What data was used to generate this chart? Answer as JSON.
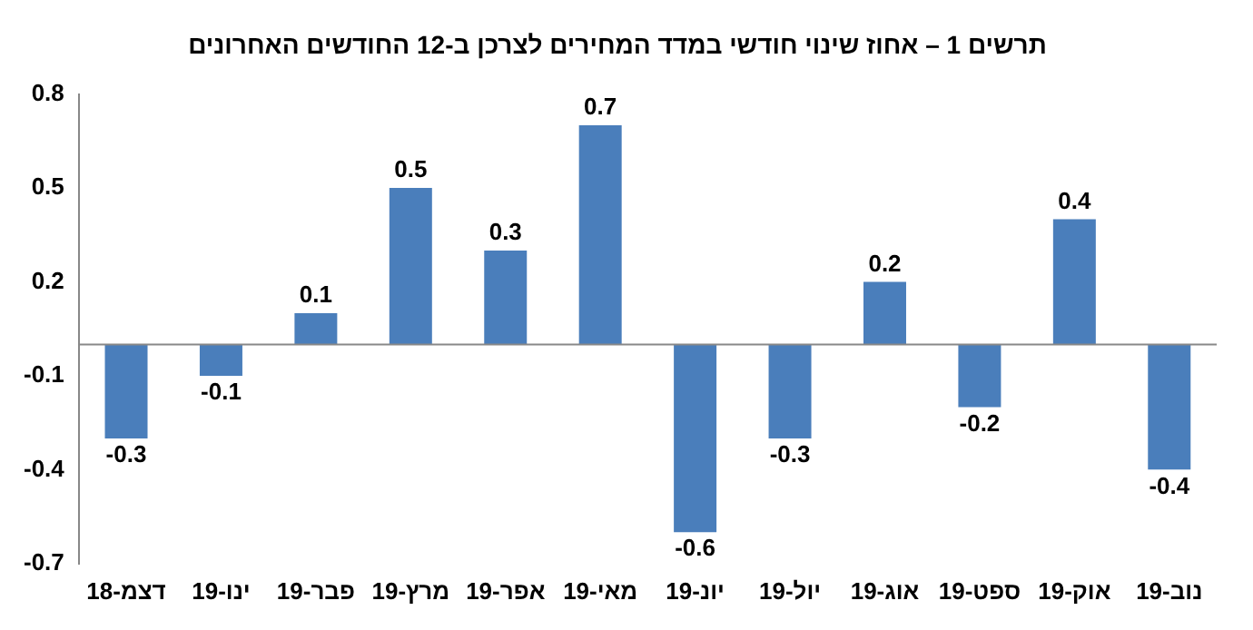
{
  "chart_data": {
    "type": "bar",
    "title": "תרשים 1 – אחוז שינוי חודשי במדד המחירים לצרכן ב-12 החודשים האחרונים",
    "categories": [
      "דצמ-18",
      "ינו-19",
      "פבר-19",
      "מרץ-19",
      "אפר-19",
      "מאי-19",
      "יונ-19",
      "יול-19",
      "אוג-19",
      "ספט-19",
      "אוק-19",
      "נוב-19"
    ],
    "values": [
      -0.3,
      -0.1,
      0.1,
      0.5,
      0.3,
      0.7,
      -0.6,
      -0.3,
      0.2,
      -0.2,
      0.4,
      -0.4
    ],
    "color": "#4a7ebb",
    "ylim": [
      -0.7,
      0.8
    ],
    "yticks": [
      -0.7,
      -0.4,
      -0.1,
      0.2,
      0.5,
      0.8
    ],
    "data_labels": true,
    "grid": false,
    "legend": false
  }
}
